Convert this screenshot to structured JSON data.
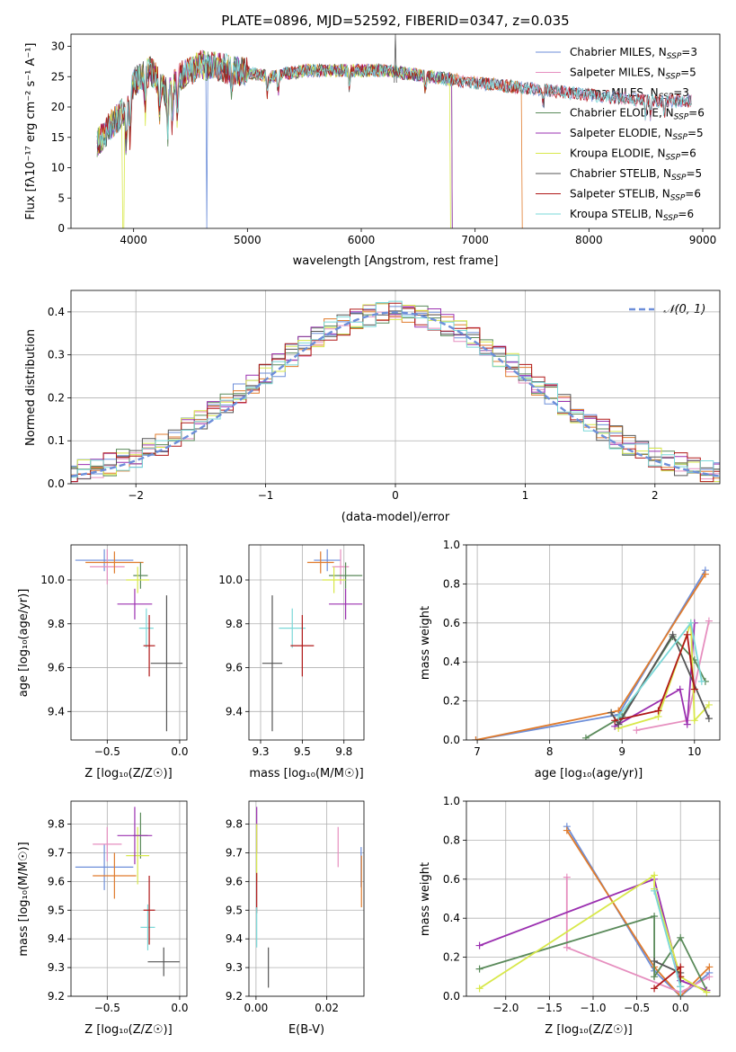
{
  "chart_data": [
    {
      "id": "spectrum",
      "type": "line",
      "title": "PLATE=0896, MJD=52592, FIBERID=0347, z=0.035",
      "xlabel": "wavelength [Angstrom, rest frame]",
      "ylabel": "Flux [fλ10⁻¹⁷ erg cm⁻² s⁻¹ A⁻¹]",
      "xlim": [
        3450,
        9150
      ],
      "ylim": [
        0,
        32
      ],
      "xticks": [
        4000,
        5000,
        6000,
        7000,
        8000,
        9000
      ],
      "yticks": [
        0,
        5,
        10,
        15,
        20,
        25,
        30
      ],
      "grid": false,
      "legend_position": "top-right",
      "continuum": [
        {
          "x": 3680,
          "y": 14
        },
        {
          "x": 3800,
          "y": 17
        },
        {
          "x": 3950,
          "y": 20
        },
        {
          "x": 4000,
          "y": 24
        },
        {
          "x": 4150,
          "y": 26
        },
        {
          "x": 4300,
          "y": 22
        },
        {
          "x": 4400,
          "y": 25
        },
        {
          "x": 4600,
          "y": 27
        },
        {
          "x": 4900,
          "y": 26
        },
        {
          "x": 5200,
          "y": 25
        },
        {
          "x": 5500,
          "y": 26
        },
        {
          "x": 5800,
          "y": 26
        },
        {
          "x": 6200,
          "y": 26
        },
        {
          "x": 6600,
          "y": 25
        },
        {
          "x": 7000,
          "y": 24
        },
        {
          "x": 7500,
          "y": 23
        },
        {
          "x": 8000,
          "y": 22
        },
        {
          "x": 8500,
          "y": 21
        },
        {
          "x": 8900,
          "y": 21
        }
      ],
      "series": [
        {
          "name": "Chabrier MILES, N_SSP=3",
          "color": "#6c8ed9",
          "end": 8900,
          "drop": [
            4640
          ]
        },
        {
          "name": "Salpeter MILES, N_SSP=5",
          "color": "#e68fbf",
          "end": 8900
        },
        {
          "name": "Kroupa MILES, N_SSP=3",
          "color": "#e07b2c",
          "end": 7420,
          "drop": [
            7420
          ]
        },
        {
          "name": "Chabrier ELODIE, N_SSP=6",
          "color": "#5a8a5a",
          "end": 6800
        },
        {
          "name": "Salpeter ELODIE, N_SSP=5",
          "color": "#9b30b0",
          "end": 6800
        },
        {
          "name": "Kroupa ELODIE, N_SSP=6",
          "color": "#d8e84a",
          "end": 6800,
          "drop": [
            3910,
            6790
          ]
        },
        {
          "name": "Chabrier STELIB, N_SSP=5",
          "color": "#555555",
          "end": 8900
        },
        {
          "name": "Salpeter STELIB, N_SSP=6",
          "color": "#b01818",
          "end": 8900
        },
        {
          "name": "Kroupa STELIB, N_SSP=6",
          "color": "#7ad8d8",
          "end": 8900
        }
      ]
    },
    {
      "id": "hist",
      "type": "line",
      "xlabel": "(data-model)/error",
      "ylabel": "Normed distribution",
      "xlim": [
        -2.5,
        2.5
      ],
      "ylim": [
        0,
        0.45
      ],
      "xticks": [
        -2,
        -1,
        0,
        1,
        2
      ],
      "yticks": [
        0.0,
        0.1,
        0.2,
        0.3,
        0.4
      ],
      "grid": true,
      "legend_position": "top-right",
      "legend": "𝒩(0, 1)",
      "gaussian_color": "#6c8ed9",
      "bin_width": 0.1,
      "colors": [
        "#6c8ed9",
        "#e68fbf",
        "#e07b2c",
        "#5a8a5a",
        "#9b30b0",
        "#d8e84a",
        "#555555",
        "#b01818",
        "#7ad8d8"
      ]
    },
    {
      "id": "age_Z",
      "type": "scatter",
      "xlabel": "Z [log₁₀(Z/Z☉)]",
      "ylabel": "age  [log₁₀(age/yr)]",
      "xlim": [
        -0.75,
        0.05
      ],
      "ylim": [
        9.27,
        10.16
      ],
      "xticks": [
        -0.5,
        0.0
      ],
      "yticks": [
        9.4,
        9.6,
        9.8,
        10.0
      ],
      "grid": true,
      "points": [
        {
          "x": -0.52,
          "y": 10.09,
          "xerr": 0.2,
          "yerr": 0.05,
          "color": "#6c8ed9"
        },
        {
          "x": -0.5,
          "y": 10.06,
          "xerr": 0.12,
          "yerr": 0.08,
          "color": "#e68fbf"
        },
        {
          "x": -0.45,
          "y": 10.08,
          "xerr": 0.2,
          "yerr": 0.05,
          "color": "#e07b2c"
        },
        {
          "x": -0.27,
          "y": 10.02,
          "xerr": 0.05,
          "yerr": 0.06,
          "color": "#5a8a5a"
        },
        {
          "x": -0.29,
          "y": 10.0,
          "xerr": 0.08,
          "yerr": 0.06,
          "color": "#d8e84a"
        },
        {
          "x": -0.31,
          "y": 9.89,
          "xerr": 0.12,
          "yerr": 0.07,
          "color": "#9b30b0"
        },
        {
          "x": -0.23,
          "y": 9.78,
          "xerr": 0.05,
          "yerr": 0.09,
          "color": "#7ad8d8"
        },
        {
          "x": -0.21,
          "y": 9.7,
          "xerr": 0.04,
          "yerr": 0.14,
          "color": "#b01818"
        },
        {
          "x": -0.09,
          "y": 9.62,
          "xerr": 0.11,
          "yerr": 0.31,
          "color": "#555555"
        }
      ]
    },
    {
      "id": "age_mass",
      "type": "scatter",
      "xlabel": "mass [log₁₀(M/M☉)]",
      "ylabel": "",
      "xlim": [
        9.18,
        9.87
      ],
      "ylim": [
        9.27,
        10.16
      ],
      "xticks": [
        9.25,
        9.5,
        9.75
      ],
      "yticks": [
        9.4,
        9.6,
        9.8,
        10.0
      ],
      "grid": true,
      "points": [
        {
          "x": 9.65,
          "y": 10.09,
          "xerr": 0.08,
          "yerr": 0.05,
          "color": "#6c8ed9"
        },
        {
          "x": 9.73,
          "y": 10.06,
          "xerr": 0.05,
          "yerr": 0.08,
          "color": "#e68fbf"
        },
        {
          "x": 9.61,
          "y": 10.08,
          "xerr": 0.08,
          "yerr": 0.05,
          "color": "#e07b2c"
        },
        {
          "x": 9.76,
          "y": 10.02,
          "xerr": 0.1,
          "yerr": 0.06,
          "color": "#5a8a5a"
        },
        {
          "x": 9.69,
          "y": 10.0,
          "xerr": 0.07,
          "yerr": 0.06,
          "color": "#d8e84a"
        },
        {
          "x": 9.76,
          "y": 9.89,
          "xerr": 0.1,
          "yerr": 0.07,
          "color": "#9b30b0"
        },
        {
          "x": 9.44,
          "y": 9.78,
          "xerr": 0.08,
          "yerr": 0.09,
          "color": "#7ad8d8"
        },
        {
          "x": 9.5,
          "y": 9.7,
          "xerr": 0.07,
          "yerr": 0.14,
          "color": "#b01818"
        },
        {
          "x": 9.32,
          "y": 9.62,
          "xerr": 0.06,
          "yerr": 0.31,
          "color": "#555555"
        }
      ]
    },
    {
      "id": "weight_age",
      "type": "line",
      "xlabel": "age  [log₁₀(age/yr)]",
      "ylabel": "mass weight",
      "xlim": [
        6.85,
        10.35
      ],
      "ylim": [
        0,
        1.0
      ],
      "xticks": [
        7,
        8,
        9,
        10
      ],
      "yticks": [
        0.0,
        0.2,
        0.4,
        0.6,
        0.8,
        1.0
      ],
      "grid": true,
      "series": [
        {
          "color": "#6c8ed9",
          "x": [
            6.98,
            8.95,
            10.15
          ],
          "y": [
            0.0,
            0.13,
            0.87
          ]
        },
        {
          "color": "#e07b2c",
          "x": [
            6.98,
            8.95,
            10.15
          ],
          "y": [
            0.0,
            0.15,
            0.85
          ]
        },
        {
          "color": "#e68fbf",
          "x": [
            9.2,
            9.9,
            10.2
          ],
          "y": [
            0.05,
            0.1,
            0.61
          ]
        },
        {
          "color": "#5a8a5a",
          "x": [
            8.5,
            9.0,
            9.7,
            10.0,
            10.15
          ],
          "y": [
            0.01,
            0.12,
            0.53,
            0.41,
            0.3
          ]
        },
        {
          "color": "#9b30b0",
          "x": [
            8.9,
            9.8,
            9.9,
            10.0
          ],
          "y": [
            0.07,
            0.26,
            0.08,
            0.6
          ]
        },
        {
          "color": "#d8e84a",
          "x": [
            8.95,
            9.5,
            9.95,
            10.0,
            10.2
          ],
          "y": [
            0.06,
            0.12,
            0.6,
            0.1,
            0.18
          ]
        },
        {
          "color": "#555555",
          "x": [
            8.85,
            8.95,
            9.7,
            10.2
          ],
          "y": [
            0.14,
            0.08,
            0.54,
            0.11
          ]
        },
        {
          "color": "#b01818",
          "x": [
            8.9,
            9.5,
            9.9,
            10.0
          ],
          "y": [
            0.1,
            0.15,
            0.54,
            0.26
          ]
        },
        {
          "color": "#7ad8d8",
          "x": [
            8.95,
            9.95,
            10.1
          ],
          "y": [
            0.12,
            0.6,
            0.3
          ]
        }
      ]
    },
    {
      "id": "mass_Z",
      "type": "scatter",
      "xlabel": "Z [log₁₀(Z/Z☉)]",
      "ylabel": "mass [log₁₀(M/M☉)]",
      "xlim": [
        -0.75,
        0.05
      ],
      "ylim": [
        9.2,
        9.88
      ],
      "xticks": [
        -0.5,
        0.0
      ],
      "yticks": [
        9.2,
        9.3,
        9.4,
        9.5,
        9.6,
        9.7,
        9.8
      ],
      "grid": true,
      "points": [
        {
          "x": -0.52,
          "y": 9.65,
          "xerr": 0.2,
          "yerr": 0.08,
          "color": "#6c8ed9"
        },
        {
          "x": -0.5,
          "y": 9.73,
          "xerr": 0.1,
          "yerr": 0.06,
          "color": "#e68fbf"
        },
        {
          "x": -0.45,
          "y": 9.62,
          "xerr": 0.15,
          "yerr": 0.08,
          "color": "#e07b2c"
        },
        {
          "x": -0.27,
          "y": 9.76,
          "xerr": 0.05,
          "yerr": 0.08,
          "color": "#5a8a5a"
        },
        {
          "x": -0.29,
          "y": 9.69,
          "xerr": 0.08,
          "yerr": 0.1,
          "color": "#d8e84a"
        },
        {
          "x": -0.31,
          "y": 9.76,
          "xerr": 0.12,
          "yerr": 0.1,
          "color": "#9b30b0"
        },
        {
          "x": -0.22,
          "y": 9.44,
          "xerr": 0.05,
          "yerr": 0.08,
          "color": "#7ad8d8"
        },
        {
          "x": -0.21,
          "y": 9.5,
          "xerr": 0.04,
          "yerr": 0.12,
          "color": "#b01818"
        },
        {
          "x": -0.11,
          "y": 9.32,
          "xerr": 0.11,
          "yerr": 0.05,
          "color": "#555555"
        }
      ]
    },
    {
      "id": "mass_ebv",
      "type": "scatter",
      "xlabel": "E(B-V)",
      "ylabel": "",
      "xlim": [
        -0.002,
        0.0305
      ],
      "ylim": [
        9.2,
        9.88
      ],
      "xticks": [
        0.0,
        0.02
      ],
      "yticks": [
        9.2,
        9.3,
        9.4,
        9.5,
        9.6,
        9.7,
        9.8
      ],
      "grid": true,
      "points": [
        {
          "x": 0.0002,
          "y": 9.78,
          "xerr": 0,
          "yerr": 0.08,
          "color": "#9b30b0"
        },
        {
          "x": 0.0002,
          "y": 9.7,
          "xerr": 0,
          "yerr": 0.1,
          "color": "#d8e84a"
        },
        {
          "x": 0.0002,
          "y": 9.56,
          "xerr": 0,
          "yerr": 0.07,
          "color": "#b01818"
        },
        {
          "x": 0.0002,
          "y": 9.44,
          "xerr": 0,
          "yerr": 0.07,
          "color": "#7ad8d8"
        },
        {
          "x": 0.0035,
          "y": 9.3,
          "xerr": 0,
          "yerr": 0.07,
          "color": "#555555"
        },
        {
          "x": 0.0232,
          "y": 9.72,
          "xerr": 0,
          "yerr": 0.07,
          "color": "#e68fbf"
        },
        {
          "x": 0.0297,
          "y": 9.65,
          "xerr": 0,
          "yerr": 0.07,
          "color": "#6c8ed9"
        },
        {
          "x": 0.0298,
          "y": 9.6,
          "xerr": 0,
          "yerr": 0.09,
          "color": "#e07b2c"
        }
      ]
    },
    {
      "id": "weight_Z",
      "type": "line",
      "xlabel": "Z [log₁₀(Z/Z☉)]",
      "ylabel": "mass weight",
      "xlim": [
        -2.45,
        0.45
      ],
      "ylim": [
        0,
        1.0
      ],
      "xticks": [
        -2.0,
        -1.5,
        -1.0,
        -0.5,
        0.0
      ],
      "yticks": [
        0.0,
        0.2,
        0.4,
        0.6,
        0.8,
        1.0
      ],
      "grid": true,
      "series": [
        {
          "color": "#6c8ed9",
          "x": [
            -1.3,
            -0.3,
            0.0,
            0.33
          ],
          "y": [
            0.87,
            0.13,
            0.0,
            0.12
          ]
        },
        {
          "color": "#e07b2c",
          "x": [
            -1.3,
            -0.3,
            0.0,
            0.33
          ],
          "y": [
            0.85,
            0.15,
            0.0,
            0.15
          ]
        },
        {
          "color": "#e68fbf",
          "x": [
            -1.3,
            -1.3,
            0.0,
            0.33
          ],
          "y": [
            0.61,
            0.25,
            0.02,
            0.1
          ]
        },
        {
          "color": "#5a8a5a",
          "x": [
            -2.3,
            -0.3,
            -0.3,
            0.0,
            0.3
          ],
          "y": [
            0.14,
            0.41,
            0.1,
            0.3,
            0.03
          ]
        },
        {
          "color": "#9b30b0",
          "x": [
            -2.3,
            -0.3,
            0.0,
            0.3
          ],
          "y": [
            0.26,
            0.6,
            0.08,
            0.03
          ]
        },
        {
          "color": "#d8e84a",
          "x": [
            -2.3,
            -0.3,
            -0.3,
            0.0,
            0.3
          ],
          "y": [
            0.04,
            0.62,
            0.55,
            0.1,
            0.02
          ]
        },
        {
          "color": "#555555",
          "x": [
            -0.3,
            0.0,
            0.0
          ],
          "y": [
            0.18,
            0.12,
            0.05
          ]
        },
        {
          "color": "#b01818",
          "x": [
            -0.3,
            0.0,
            0.0
          ],
          "y": [
            0.04,
            0.15,
            0.1
          ]
        },
        {
          "color": "#7ad8d8",
          "x": [
            -0.3,
            0.0,
            0.0
          ],
          "y": [
            0.54,
            0.05,
            0.0
          ]
        }
      ]
    }
  ]
}
